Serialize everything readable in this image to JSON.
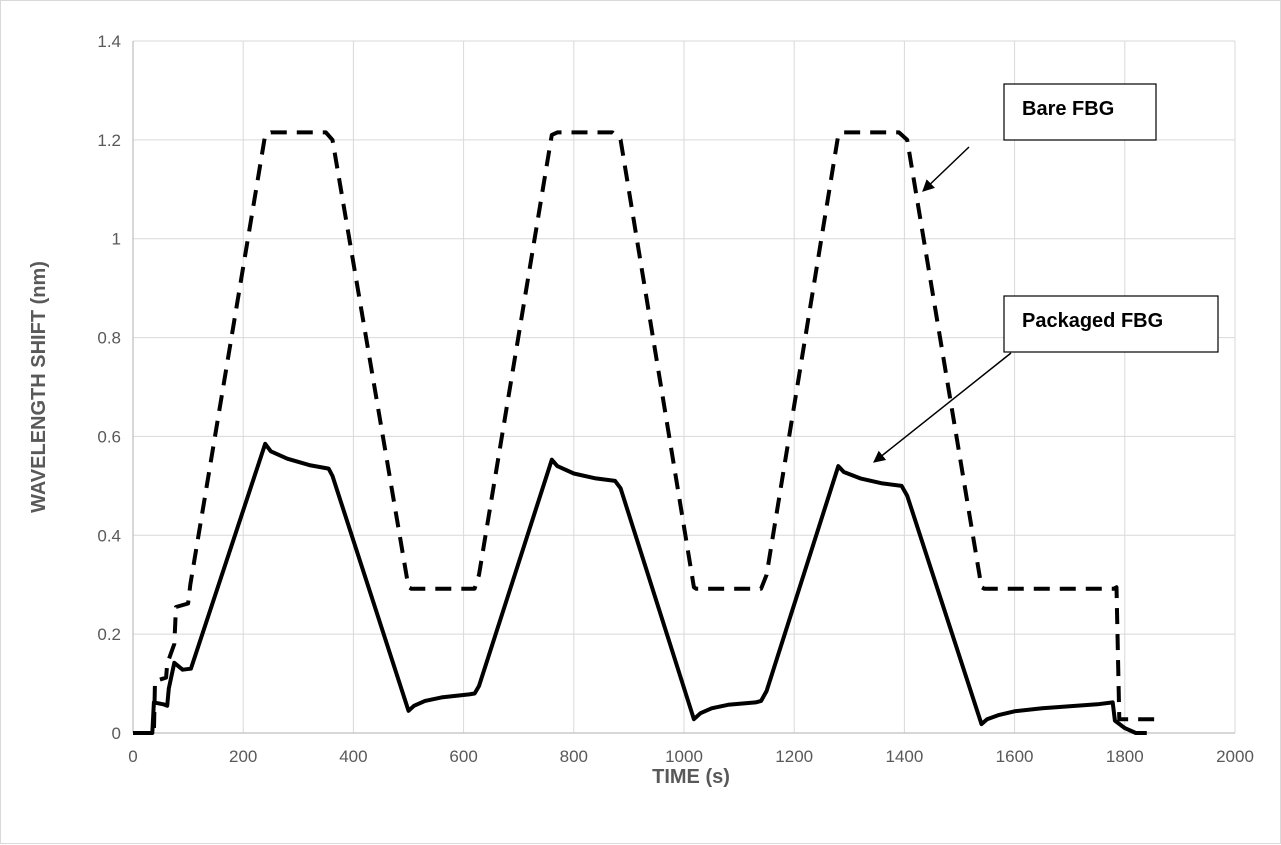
{
  "chart_data": {
    "type": "line",
    "title": "",
    "xlabel": "TIME (s)",
    "ylabel": "WAVELENGTH SHIFT (nm)",
    "xlim": [
      0,
      2000
    ],
    "ylim": [
      0,
      1.4
    ],
    "xticks": [
      0,
      200,
      400,
      600,
      800,
      1000,
      1200,
      1400,
      1600,
      1800,
      2000
    ],
    "yticks": [
      0,
      0.2,
      0.4,
      0.6,
      0.8,
      1,
      1.2,
      1.4
    ],
    "xtick_labels": [
      "0",
      "200",
      "400",
      "600",
      "800",
      "1000",
      "1200",
      "1400",
      "1600",
      "1800",
      "2000"
    ],
    "ytick_labels": [
      "0",
      "0.2",
      "0.4",
      "0.6",
      "0.8",
      "1",
      "1.2",
      "1.4"
    ],
    "grid": true,
    "legend": "none",
    "series": [
      {
        "name": "Bare FBG",
        "style": "dashed",
        "color": "#000000",
        "x": [
          0,
          38,
          40,
          60,
          62,
          75,
          78,
          100,
          104,
          240,
          250,
          350,
          362,
          500,
          505,
          620,
          628,
          760,
          770,
          870,
          885,
          1018,
          1022,
          1140,
          1150,
          1280,
          1290,
          1390,
          1405,
          1540,
          1545,
          1780,
          1785,
          1790,
          1800,
          1870
        ],
        "y": [
          0,
          0,
          0.105,
          0.112,
          0.14,
          0.18,
          0.255,
          0.262,
          0.3,
          1.21,
          1.215,
          1.215,
          1.2,
          0.295,
          0.292,
          0.292,
          0.32,
          1.21,
          1.215,
          1.215,
          1.2,
          0.295,
          0.292,
          0.292,
          0.32,
          1.21,
          1.215,
          1.215,
          1.2,
          0.295,
          0.292,
          0.292,
          0.295,
          0.028,
          0.028,
          0.028
        ]
      },
      {
        "name": "Packaged FBG",
        "style": "solid",
        "color": "#000000",
        "x": [
          0,
          35,
          38,
          55,
          62,
          65,
          75,
          90,
          105,
          240,
          250,
          280,
          320,
          355,
          362,
          500,
          510,
          530,
          560,
          610,
          620,
          628,
          760,
          770,
          800,
          840,
          875,
          885,
          1018,
          1030,
          1050,
          1080,
          1130,
          1140,
          1150,
          1280,
          1290,
          1320,
          1360,
          1395,
          1405,
          1540,
          1550,
          1570,
          1600,
          1650,
          1700,
          1750,
          1778,
          1782,
          1800,
          1820,
          1840
        ],
        "y": [
          0,
          0,
          0.062,
          0.058,
          0.055,
          0.09,
          0.142,
          0.128,
          0.13,
          0.585,
          0.57,
          0.555,
          0.542,
          0.535,
          0.52,
          0.045,
          0.055,
          0.065,
          0.072,
          0.078,
          0.08,
          0.095,
          0.553,
          0.54,
          0.525,
          0.515,
          0.51,
          0.495,
          0.028,
          0.04,
          0.05,
          0.057,
          0.062,
          0.065,
          0.085,
          0.54,
          0.528,
          0.515,
          0.505,
          0.5,
          0.48,
          0.018,
          0.028,
          0.036,
          0.044,
          0.05,
          0.054,
          0.058,
          0.062,
          0.025,
          0.01,
          0.0,
          0.0
        ]
      }
    ],
    "annotations": [
      {
        "text": "Bare FBG",
        "series": "Bare FBG"
      },
      {
        "text": "Packaged FBG",
        "series": "Packaged FBG"
      }
    ]
  },
  "colors": {
    "grid": "#d9d9d9",
    "tick_text": "#595959",
    "series": "#000000"
  }
}
